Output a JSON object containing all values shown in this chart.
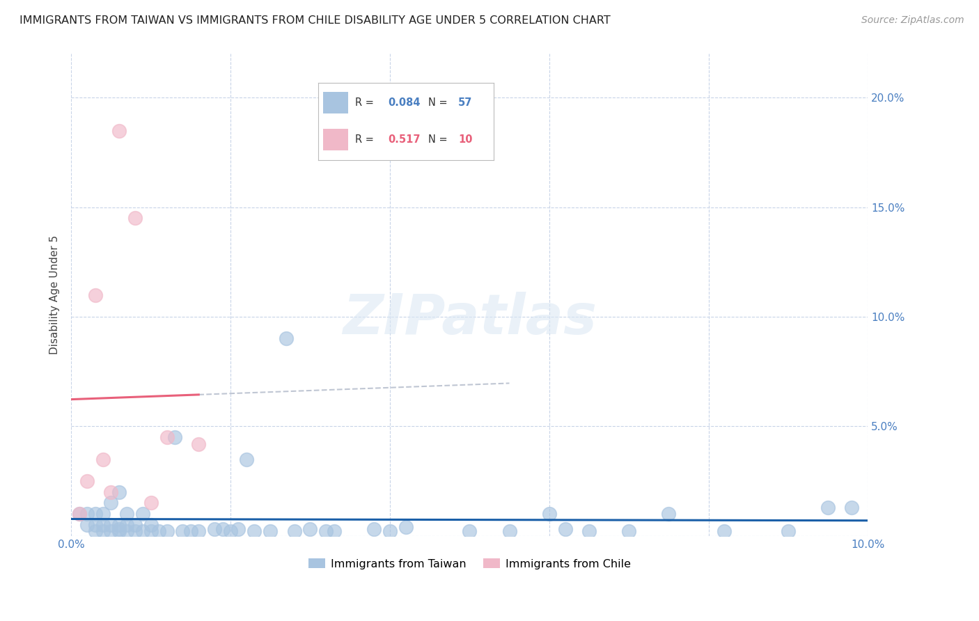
{
  "title": "IMMIGRANTS FROM TAIWAN VS IMMIGRANTS FROM CHILE DISABILITY AGE UNDER 5 CORRELATION CHART",
  "source": "Source: ZipAtlas.com",
  "ylabel": "Disability Age Under 5",
  "xlim": [
    0.0,
    0.1
  ],
  "ylim": [
    0.0,
    0.22
  ],
  "taiwan_color": "#a8c4e0",
  "chile_color": "#f0b8c8",
  "taiwan_line_color": "#1a5fa8",
  "chile_line_color": "#e8607a",
  "taiwan_R": 0.084,
  "taiwan_N": 57,
  "chile_R": 0.517,
  "chile_N": 10,
  "taiwan_x": [
    0.001,
    0.002,
    0.002,
    0.003,
    0.003,
    0.003,
    0.004,
    0.004,
    0.004,
    0.005,
    0.005,
    0.005,
    0.006,
    0.006,
    0.006,
    0.006,
    0.007,
    0.007,
    0.007,
    0.008,
    0.008,
    0.009,
    0.009,
    0.01,
    0.01,
    0.011,
    0.012,
    0.013,
    0.014,
    0.015,
    0.016,
    0.018,
    0.019,
    0.02,
    0.021,
    0.022,
    0.023,
    0.025,
    0.027,
    0.028,
    0.03,
    0.032,
    0.033,
    0.038,
    0.04,
    0.042,
    0.05,
    0.055,
    0.06,
    0.062,
    0.065,
    0.07,
    0.075,
    0.082,
    0.09,
    0.095,
    0.098
  ],
  "taiwan_y": [
    0.01,
    0.005,
    0.01,
    0.002,
    0.005,
    0.01,
    0.002,
    0.005,
    0.01,
    0.002,
    0.005,
    0.015,
    0.002,
    0.003,
    0.005,
    0.02,
    0.002,
    0.005,
    0.01,
    0.002,
    0.005,
    0.002,
    0.01,
    0.002,
    0.005,
    0.002,
    0.002,
    0.045,
    0.002,
    0.002,
    0.002,
    0.003,
    0.003,
    0.002,
    0.003,
    0.035,
    0.002,
    0.002,
    0.09,
    0.002,
    0.003,
    0.002,
    0.002,
    0.003,
    0.002,
    0.004,
    0.002,
    0.002,
    0.01,
    0.003,
    0.002,
    0.002,
    0.01,
    0.002,
    0.002,
    0.013,
    0.013
  ],
  "chile_x": [
    0.001,
    0.002,
    0.003,
    0.004,
    0.005,
    0.006,
    0.008,
    0.01,
    0.012,
    0.016
  ],
  "chile_y": [
    0.01,
    0.025,
    0.11,
    0.035,
    0.02,
    0.185,
    0.145,
    0.015,
    0.045,
    0.042
  ],
  "watermark_text": "ZIPatlas",
  "legend_taiwan_label": "Immigrants from Taiwan",
  "legend_chile_label": "Immigrants from Chile",
  "background_color": "#ffffff",
  "grid_color": "#c8d4e8",
  "title_fontsize": 11.5,
  "axis_label_fontsize": 11,
  "tick_fontsize": 11,
  "source_fontsize": 10
}
